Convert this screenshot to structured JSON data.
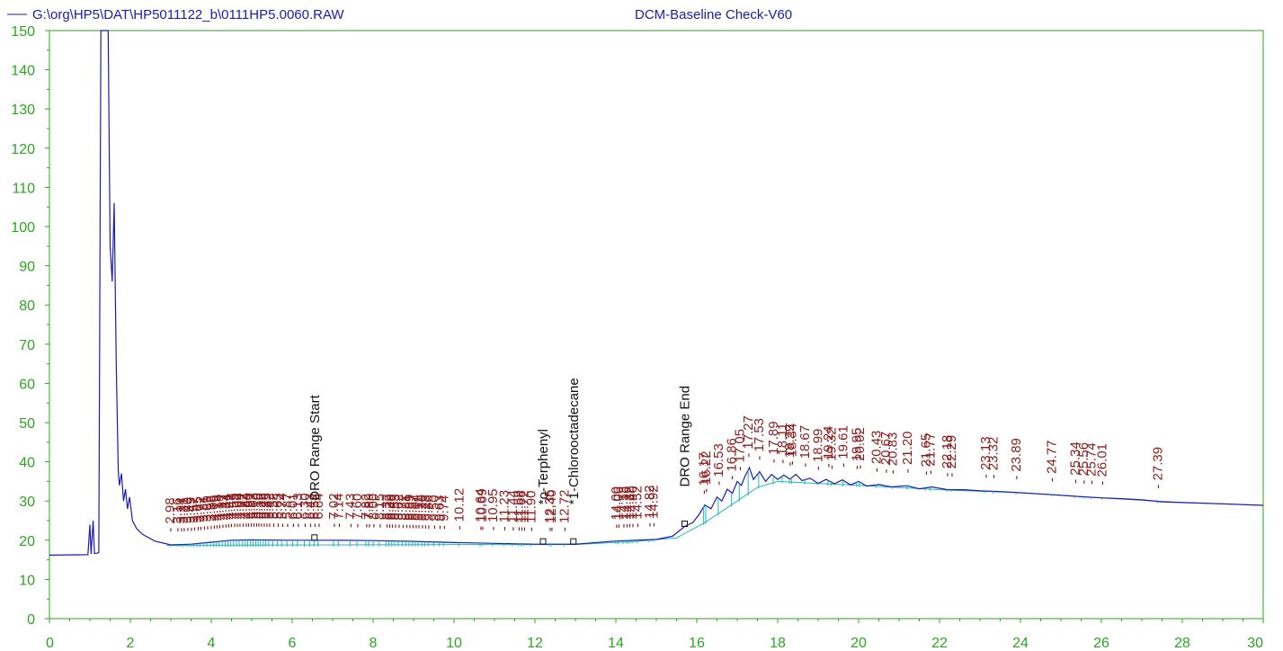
{
  "header": {
    "file_path": "G:\\org\\HP5\\DAT\\HP5011122_b\\0111HP5.0060.RAW",
    "method": "DCM-Baseline Check-V60"
  },
  "colors": {
    "trace": "#1b1bb0",
    "baseline": "#22b8b8",
    "axis": "#2aa51f",
    "peak_label": "#8b1c1c",
    "event_label": "#111111"
  },
  "chart_data": {
    "type": "line",
    "xlim": [
      0,
      30
    ],
    "ylim": [
      0,
      150
    ],
    "x_ticks": [
      "0",
      "2",
      "4",
      "6",
      "8",
      "10",
      "12",
      "14",
      "16",
      "18",
      "20",
      "22",
      "24",
      "26",
      "28",
      "30"
    ],
    "y_ticks": [
      "0",
      "10",
      "20",
      "30",
      "40",
      "50",
      "60",
      "70",
      "80",
      "90",
      "100",
      "110",
      "120",
      "130",
      "140",
      "150"
    ],
    "grid": false,
    "series": [
      {
        "role": "signal",
        "points": [
          [
            0,
            16.2
          ],
          [
            0.95,
            16.3
          ],
          [
            1.0,
            24
          ],
          [
            1.03,
            16.5
          ],
          [
            1.08,
            25
          ],
          [
            1.11,
            16.6
          ],
          [
            1.22,
            16.8
          ],
          [
            1.27,
            150
          ],
          [
            1.45,
            150
          ],
          [
            1.5,
            95
          ],
          [
            1.55,
            86
          ],
          [
            1.6,
            106
          ],
          [
            1.65,
            65
          ],
          [
            1.7,
            38
          ],
          [
            1.73,
            34
          ],
          [
            1.78,
            37
          ],
          [
            1.83,
            30
          ],
          [
            1.88,
            33
          ],
          [
            1.93,
            28
          ],
          [
            1.98,
            31
          ],
          [
            2.05,
            25
          ],
          [
            2.15,
            23
          ],
          [
            2.3,
            21.5
          ],
          [
            2.6,
            19.8
          ],
          [
            3.0,
            18.8
          ],
          [
            3.5,
            19.0
          ],
          [
            4.0,
            19.5
          ],
          [
            4.5,
            20.0
          ],
          [
            5.0,
            20.1
          ],
          [
            6.0,
            20.0
          ],
          [
            7.0,
            20.0
          ],
          [
            8.0,
            19.9
          ],
          [
            9.0,
            19.7
          ],
          [
            10.0,
            19.4
          ],
          [
            11.0,
            19.2
          ],
          [
            12.0,
            19.0
          ],
          [
            13.0,
            19.0
          ],
          [
            14.0,
            19.8
          ],
          [
            15.0,
            20.2
          ],
          [
            15.4,
            21.0
          ],
          [
            15.7,
            23.5
          ],
          [
            15.9,
            24.5
          ],
          [
            16.05,
            26.5
          ],
          [
            16.2,
            29
          ],
          [
            16.35,
            28
          ],
          [
            16.5,
            31
          ],
          [
            16.62,
            30
          ],
          [
            16.75,
            33
          ],
          [
            16.88,
            32
          ],
          [
            17.0,
            35
          ],
          [
            17.1,
            34
          ],
          [
            17.2,
            36.5
          ],
          [
            17.3,
            38.5
          ],
          [
            17.4,
            35.5
          ],
          [
            17.55,
            37.5
          ],
          [
            17.7,
            35
          ],
          [
            17.85,
            36.8
          ],
          [
            18.0,
            35.5
          ],
          [
            18.15,
            36.6
          ],
          [
            18.3,
            35.6
          ],
          [
            18.45,
            36.8
          ],
          [
            18.6,
            35.2
          ],
          [
            18.8,
            35.8
          ],
          [
            19.0,
            34.5
          ],
          [
            19.2,
            35.5
          ],
          [
            19.4,
            34.4
          ],
          [
            19.6,
            35.4
          ],
          [
            19.8,
            34.1
          ],
          [
            20.0,
            35.0
          ],
          [
            20.2,
            33.8
          ],
          [
            20.5,
            34.2
          ],
          [
            20.8,
            33.6
          ],
          [
            21.2,
            33.9
          ],
          [
            21.5,
            33.1
          ],
          [
            21.8,
            33.6
          ],
          [
            22.2,
            32.9
          ],
          [
            22.6,
            32.9
          ],
          [
            23.0,
            32.6
          ],
          [
            23.5,
            32.4
          ],
          [
            24.0,
            32.1
          ],
          [
            24.8,
            31.6
          ],
          [
            25.5,
            31.1
          ],
          [
            26.0,
            30.8
          ],
          [
            26.5,
            30.6
          ],
          [
            27.0,
            30.3
          ],
          [
            27.5,
            29.8
          ],
          [
            28.0,
            29.6
          ],
          [
            29.0,
            29.3
          ],
          [
            30.0,
            28.9
          ]
        ]
      },
      {
        "role": "baseline",
        "points": [
          [
            2.9,
            18.7
          ],
          [
            10.0,
            18.9
          ],
          [
            13.0,
            18.9
          ],
          [
            14.5,
            19.7
          ],
          [
            15.5,
            20.6
          ],
          [
            16.2,
            24.5
          ],
          [
            17.0,
            30.0
          ],
          [
            17.5,
            33.5
          ],
          [
            18.0,
            35.0
          ],
          [
            20.0,
            34.0
          ],
          [
            22.0,
            32.9
          ],
          [
            24.0,
            32.1
          ],
          [
            26.0,
            30.8
          ],
          [
            28.0,
            29.6
          ],
          [
            30.0,
            28.9
          ]
        ]
      }
    ],
    "peak_labels": [
      "2.98",
      "3.16",
      "3.24",
      "3.31",
      "3.40",
      "3.49",
      "3.57",
      "3.65",
      "3.72",
      "3.81",
      "3.89",
      "3.98",
      "4.06",
      "4.12",
      "4.19",
      "4.27",
      "4.34",
      "4.41",
      "4.48",
      "4.55",
      "4.62",
      "4.69",
      "4.77",
      "4.84",
      "4.90",
      "4.97",
      "5.03",
      "5.10",
      "5.16",
      "5.22",
      "5.29",
      "5.35",
      "5.42",
      "5.52",
      "5.63",
      "5.74",
      "5.87",
      "6.01",
      "6.13",
      "6.30",
      "6.43",
      "6.54",
      "6.64",
      "7.02",
      "7.14",
      "7.43",
      "7.60",
      "7.82",
      "7.89",
      "8.00",
      "8.15",
      "8.32",
      "8.39",
      "8.46",
      "8.53",
      "8.62",
      "8.72",
      "8.81",
      "8.89",
      "8.97",
      "9.04",
      "9.11",
      "9.20",
      "9.28",
      "9.36",
      "9.50",
      "9.63",
      "9.74",
      "10.12",
      "10.64",
      "10.69",
      "10.95",
      "11.23",
      "11.44",
      "11.59",
      "11.66",
      "11.72",
      "11.90",
      "12.35",
      "12.40",
      "12.72",
      "14.00",
      "14.06",
      "14.18",
      "14.26",
      "14.32",
      "14.40",
      "14.52",
      "14.82",
      "14.92",
      "16.17",
      "16.22",
      "16.53",
      "16.86",
      "17.05",
      "17.27",
      "17.53",
      "17.89",
      "18.11",
      "18.29",
      "18.34",
      "18.67",
      "18.99",
      "19.24",
      "19.32",
      "19.61",
      "19.95",
      "20.02",
      "20.43",
      "20.67",
      "20.83",
      "21.20",
      "21.65",
      "21.77",
      "22.18",
      "22.29",
      "23.13",
      "23.32",
      "23.89",
      "24.77",
      "25.34",
      "25.56",
      "25.74",
      "26.01",
      "27.39"
    ],
    "events": [
      {
        "x": 6.55,
        "label": "DRO Range Start"
      },
      {
        "x": 12.2,
        "label": "*o-Terphenyl"
      },
      {
        "x": 12.95,
        "label": "*1-Chlorooctadecane"
      },
      {
        "x": 15.7,
        "label": "DRO Range End"
      }
    ]
  }
}
